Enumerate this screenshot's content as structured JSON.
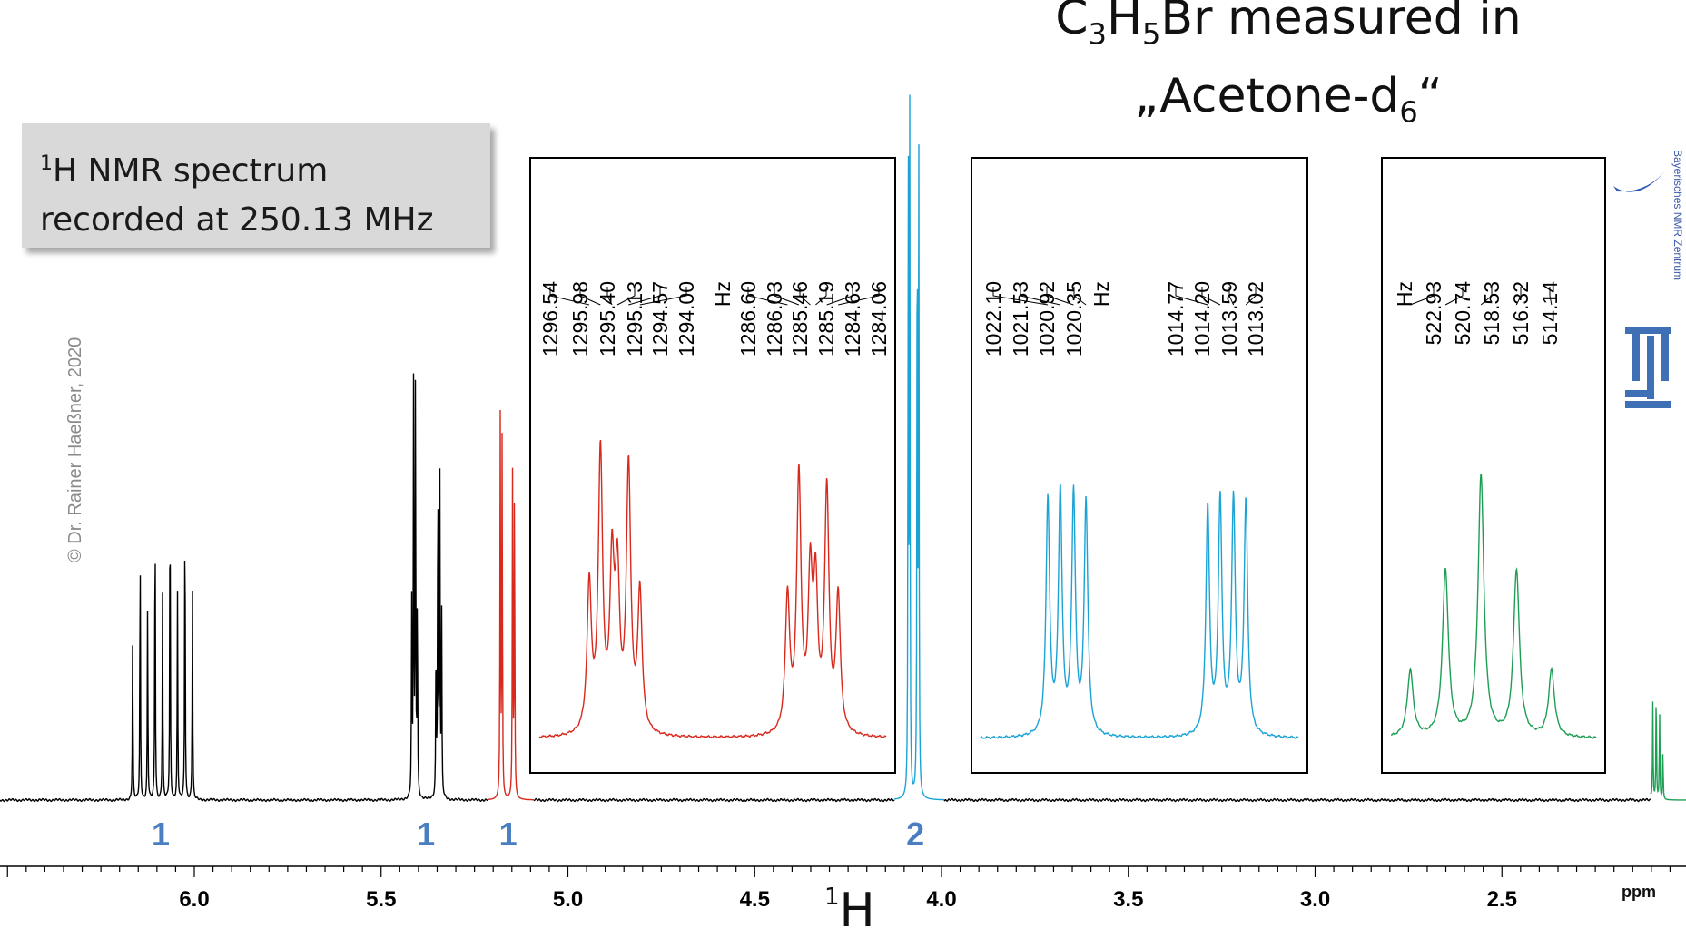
{
  "title": {
    "line1_pre": "C",
    "line1_s1": "3",
    "line1_mid": "H",
    "line1_s2": "5",
    "line1_post": "Br measured in",
    "line2_pre": "„Acetone-d",
    "line2_sub": "6",
    "line2_post": "“"
  },
  "info_box": {
    "sup": "1",
    "line1_rest": "H NMR spectrum",
    "line2": "recorded at 250.13 MHz"
  },
  "copyright": "© Dr. Rainer Haeßner, 2020",
  "nucleus": {
    "sup": "1",
    "symbol": "H"
  },
  "logos": {
    "side_text": "Bayerisches NMR Zentrum",
    "tum": "tum-logo",
    "bnmr": "bnmr-logo"
  },
  "colors": {
    "black": "#000000",
    "red": "#d9281c",
    "blue": "#1ba3d6",
    "green": "#1e9e54",
    "integral": "#4a7ec0"
  },
  "chart_data": [
    {
      "type": "line",
      "name": "main-spectrum",
      "xlabel": "ppm",
      "xlim": [
        6.5,
        2.0
      ],
      "ticks": [
        6.0,
        5.5,
        5.0,
        4.5,
        4.0,
        3.5,
        3.0,
        2.5
      ],
      "tick_labels": [
        "6.0",
        "5.5",
        "5.0",
        "4.5",
        "4.0",
        "3.5",
        "3.0",
        "2.5"
      ],
      "integrals": [
        {
          "ppm": 6.09,
          "label": "1"
        },
        {
          "ppm": 5.38,
          "label": "1"
        },
        {
          "ppm": 5.16,
          "label": "1"
        },
        {
          "ppm": 4.07,
          "label": "2"
        }
      ],
      "peaks": [
        {
          "ppm": 6.165,
          "h": 0.48,
          "c": "black"
        },
        {
          "ppm": 6.145,
          "h": 0.78,
          "c": "black"
        },
        {
          "ppm": 6.125,
          "h": 0.56,
          "c": "black"
        },
        {
          "ppm": 6.105,
          "h": 0.9,
          "c": "black"
        },
        {
          "ppm": 6.085,
          "h": 0.6,
          "c": "black"
        },
        {
          "ppm": 6.065,
          "h": 0.98,
          "c": "black"
        },
        {
          "ppm": 6.045,
          "h": 0.6,
          "c": "black"
        },
        {
          "ppm": 6.025,
          "h": 0.92,
          "c": "black"
        },
        {
          "ppm": 6.005,
          "h": 0.62,
          "c": "black"
        },
        {
          "ppm": 5.418,
          "h": 0.55,
          "c": "black"
        },
        {
          "ppm": 5.413,
          "h": 1.2,
          "c": "black"
        },
        {
          "ppm": 5.408,
          "h": 1.25,
          "c": "black"
        },
        {
          "ppm": 5.403,
          "h": 0.6,
          "c": "black"
        },
        {
          "ppm": 5.353,
          "h": 0.48,
          "c": "black"
        },
        {
          "ppm": 5.348,
          "h": 1.02,
          "c": "black"
        },
        {
          "ppm": 5.343,
          "h": 1.05,
          "c": "black"
        },
        {
          "ppm": 5.338,
          "h": 0.55,
          "c": "black"
        },
        {
          "ppm": 5.181,
          "h": 1.1,
          "c": "red"
        },
        {
          "ppm": 5.176,
          "h": 1.07,
          "c": "red"
        },
        {
          "ppm": 5.148,
          "h": 1.0,
          "c": "red"
        },
        {
          "ppm": 5.143,
          "h": 0.97,
          "c": "red"
        },
        {
          "ppm": 4.089,
          "h": 1.95,
          "c": "blue"
        },
        {
          "ppm": 4.085,
          "h": 1.95,
          "c": "blue"
        },
        {
          "ppm": 4.065,
          "h": 1.95,
          "c": "blue"
        },
        {
          "ppm": 4.061,
          "h": 1.95,
          "c": "blue"
        },
        {
          "ppm": 2.105,
          "h": 0.16,
          "c": "green"
        },
        {
          "ppm": 2.096,
          "h": 0.28,
          "c": "green"
        },
        {
          "ppm": 2.087,
          "h": 0.34,
          "c": "green"
        },
        {
          "ppm": 2.078,
          "h": 0.26,
          "c": "green"
        },
        {
          "ppm": 2.069,
          "h": 0.14,
          "c": "green"
        }
      ]
    },
    {
      "type": "line",
      "name": "inset-red",
      "unit": "Hz",
      "xlim": [
        1299.5,
        1281.2
      ],
      "labels_group1": [
        "1296.54",
        "1295.98",
        "1295.40",
        "1295.13",
        "1294.57",
        "1294.00"
      ],
      "labels_group2": [
        "1286.60",
        "1286.03",
        "1285.46",
        "1285.19",
        "1284.63",
        "1284.06"
      ],
      "peaks": [
        {
          "hz": 1296.54,
          "h": 0.53
        },
        {
          "hz": 1295.98,
          "h": 1.0
        },
        {
          "hz": 1295.4,
          "h": 0.57
        },
        {
          "hz": 1295.13,
          "h": 0.53
        },
        {
          "hz": 1294.57,
          "h": 0.95
        },
        {
          "hz": 1294.0,
          "h": 0.5
        },
        {
          "hz": 1286.6,
          "h": 0.49
        },
        {
          "hz": 1286.03,
          "h": 0.92
        },
        {
          "hz": 1285.46,
          "h": 0.53
        },
        {
          "hz": 1285.19,
          "h": 0.49
        },
        {
          "hz": 1284.63,
          "h": 0.87
        },
        {
          "hz": 1284.06,
          "h": 0.49
        }
      ]
    },
    {
      "type": "line",
      "name": "inset-blue",
      "unit": "Hz",
      "xlim": [
        1025.6,
        1010.2
      ],
      "labels_group1": [
        "1022.10",
        "1021.53",
        "1020.92",
        "1020.35"
      ],
      "labels_group2": [
        "1014.77",
        "1014.20",
        "1013.59",
        "1013.02"
      ],
      "peaks": [
        {
          "hz": 1022.1,
          "h": 0.85
        },
        {
          "hz": 1021.53,
          "h": 0.87
        },
        {
          "hz": 1020.92,
          "h": 0.86
        },
        {
          "hz": 1020.35,
          "h": 0.84
        },
        {
          "hz": 1014.77,
          "h": 0.82
        },
        {
          "hz": 1014.2,
          "h": 0.84
        },
        {
          "hz": 1013.59,
          "h": 0.84
        },
        {
          "hz": 1013.02,
          "h": 0.84
        }
      ]
    },
    {
      "type": "line",
      "name": "inset-green",
      "unit": "Hz",
      "xlim": [
        524.7,
        510.8
      ],
      "labels_group1": [
        "522.93",
        "520.74",
        "518.53",
        "516.32",
        "514.14"
      ],
      "labels_group2": [],
      "peaks": [
        {
          "hz": 522.93,
          "h": 0.24
        },
        {
          "hz": 520.74,
          "h": 0.6
        },
        {
          "hz": 518.53,
          "h": 0.94
        },
        {
          "hz": 516.32,
          "h": 0.6
        },
        {
          "hz": 514.14,
          "h": 0.24
        }
      ]
    }
  ]
}
